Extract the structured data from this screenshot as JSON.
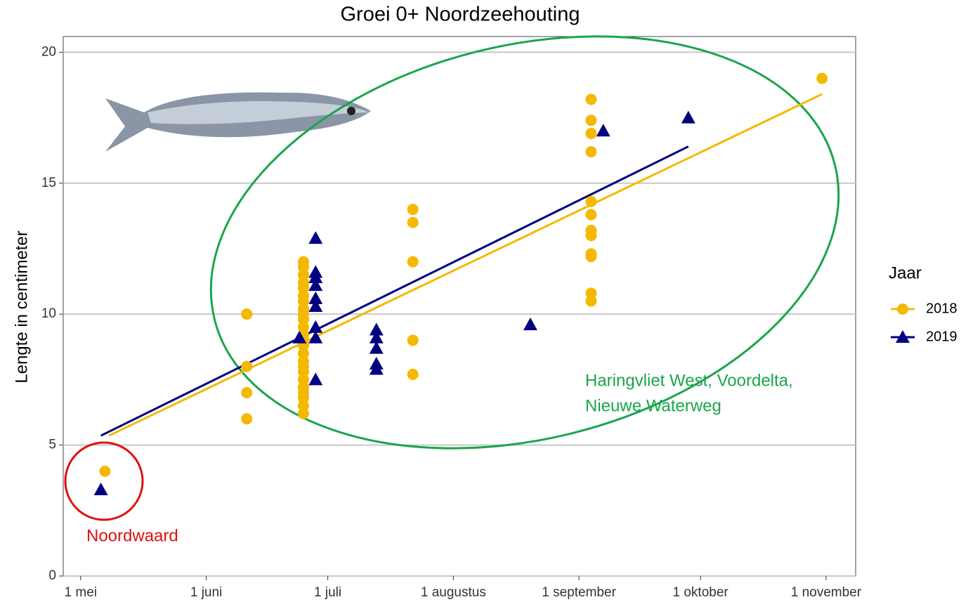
{
  "chart_data": {
    "type": "scatter",
    "title": "Groei 0+ Noordzeehouting",
    "y_label": "Lengte in centimeter",
    "legend_title": "Jaar",
    "annotations": [
      "Haringvliet West, Voordelta,",
      "Nieuwe Waterweg",
      "Noordwaard"
    ],
    "xlim": [
      116.7,
      312.3
    ],
    "ylim": [
      0,
      20.6
    ],
    "xticks": [
      {
        "value": 121,
        "label": "1 mei"
      },
      {
        "value": 152,
        "label": "1 juni"
      },
      {
        "value": 182,
        "label": "1 juli"
      },
      {
        "value": 213,
        "label": "1 augustus"
      },
      {
        "value": 244,
        "label": "1 september"
      },
      {
        "value": 274,
        "label": "1 oktober"
      },
      {
        "value": 305,
        "label": "1 november"
      }
    ],
    "yticks": [
      0,
      5,
      10,
      15,
      20
    ],
    "grid": true,
    "series": [
      {
        "name": "2018",
        "color": "#f5b800",
        "marker": "circle",
        "x": [
          127,
          162,
          162,
          162,
          162,
          176,
          176,
          176,
          176,
          176,
          176,
          176,
          176,
          176,
          176,
          176,
          176,
          176,
          176,
          176,
          176,
          176,
          176,
          176,
          176,
          176,
          176,
          176,
          176,
          203,
          203,
          203,
          203,
          203,
          247,
          247,
          247,
          247,
          247,
          247,
          247,
          247,
          247,
          247,
          247,
          247,
          304
        ],
        "values": [
          4.0,
          10,
          8,
          7,
          6,
          12,
          11.8,
          11.5,
          11.2,
          11,
          10.7,
          10.5,
          10.2,
          10,
          9.8,
          9.5,
          9.2,
          9,
          8.8,
          8.5,
          8.2,
          8,
          7.8,
          7.5,
          7.2,
          7,
          6.8,
          6.5,
          6.2,
          14,
          13.5,
          12,
          9,
          7.7,
          18.2,
          17.4,
          16.9,
          16.2,
          14.3,
          13.8,
          13.2,
          13,
          12.3,
          12.2,
          10.8,
          10.5,
          19.0
        ],
        "fit": {
          "x": [
            128,
            304
          ],
          "values": [
            5.36,
            18.4
          ]
        }
      },
      {
        "name": "2019",
        "color": "#000080",
        "marker": "triangle",
        "x": [
          126,
          175,
          179,
          179,
          179,
          179,
          179,
          179,
          179,
          179,
          179,
          194,
          194,
          194,
          194,
          194,
          232,
          250,
          271
        ],
        "values": [
          3.3,
          9.1,
          12.9,
          11.6,
          11.4,
          11.1,
          10.6,
          10.3,
          9.5,
          9.1,
          7.5,
          9.4,
          9.1,
          8.7,
          8.1,
          7.9,
          9.6,
          17.0,
          17.5
        ],
        "fit": {
          "x": [
            126,
            271
          ],
          "values": [
            5.36,
            16.4
          ]
        }
      }
    ]
  }
}
